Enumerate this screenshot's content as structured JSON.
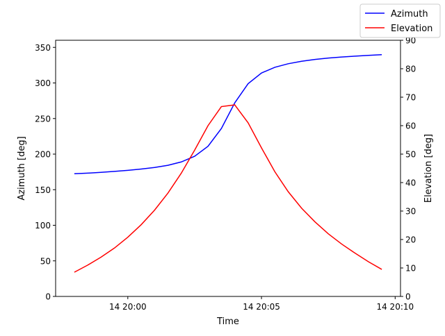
{
  "chart_data": {
    "type": "line",
    "xlabel": "Time",
    "ylabel_left": "Azimuth [deg]",
    "ylabel_right": "Elevation [deg]",
    "x_range_min": [
      -2.7,
      10.2
    ],
    "x_ticks": [
      {
        "value": 0,
        "label": "14 20:00"
      },
      {
        "value": 5,
        "label": "14 20:05"
      },
      {
        "value": 10,
        "label": "14 20:10"
      }
    ],
    "ylim_left": [
      0,
      360
    ],
    "yticks_left": [
      0,
      50,
      100,
      150,
      200,
      250,
      300,
      350
    ],
    "ylim_right": [
      0,
      90
    ],
    "yticks_right": [
      0,
      10,
      20,
      30,
      40,
      50,
      60,
      70,
      80,
      90
    ],
    "grid": false,
    "legend_position": "top-right",
    "x_minutes": [
      -2.0,
      -1.5,
      -1.0,
      -0.5,
      0.0,
      0.5,
      1.0,
      1.5,
      2.0,
      2.5,
      3.0,
      3.5,
      4.0,
      4.5,
      5.0,
      5.5,
      6.0,
      6.5,
      7.0,
      7.5,
      8.0,
      8.5,
      9.0,
      9.5
    ],
    "series": [
      {
        "name": "Azimuth",
        "axis": "left",
        "color": "#0000ff",
        "values": [
          172.5,
          173.3,
          174.4,
          175.7,
          177.2,
          179.0,
          181.2,
          184.3,
          189.0,
          197.0,
          211.0,
          236.0,
          272.0,
          299.0,
          314.0,
          322.0,
          327.0,
          330.5,
          333.0,
          335.0,
          336.5,
          337.7,
          338.8,
          339.7
        ]
      },
      {
        "name": "Elevation",
        "axis": "right",
        "color": "#ff0000",
        "values": [
          8.5,
          11.0,
          13.8,
          17.0,
          20.8,
          25.2,
          30.3,
          36.3,
          43.3,
          51.4,
          60.0,
          66.7,
          67.3,
          61.0,
          52.2,
          43.8,
          36.8,
          31.0,
          26.2,
          22.0,
          18.4,
          15.2,
          12.2,
          9.5
        ]
      }
    ]
  }
}
